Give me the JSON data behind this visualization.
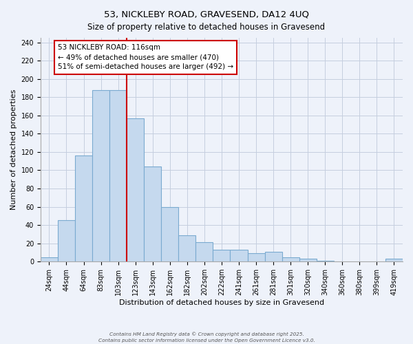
{
  "title": "53, NICKLEBY ROAD, GRAVESEND, DA12 4UQ",
  "subtitle": "Size of property relative to detached houses in Gravesend",
  "xlabel": "Distribution of detached houses by size in Gravesend",
  "ylabel": "Number of detached properties",
  "bar_labels": [
    "24sqm",
    "44sqm",
    "64sqm",
    "83sqm",
    "103sqm",
    "123sqm",
    "143sqm",
    "162sqm",
    "182sqm",
    "202sqm",
    "222sqm",
    "241sqm",
    "261sqm",
    "281sqm",
    "301sqm",
    "320sqm",
    "340sqm",
    "360sqm",
    "380sqm",
    "399sqm",
    "419sqm"
  ],
  "bar_values": [
    5,
    45,
    116,
    188,
    188,
    157,
    104,
    60,
    29,
    21,
    13,
    13,
    9,
    11,
    5,
    3,
    1,
    0,
    0,
    0,
    3
  ],
  "bar_color": "#c5d9ee",
  "bar_edge_color": "#7aaad0",
  "reference_line_color": "#cc0000",
  "annotation_line1": "53 NICKLEBY ROAD: 116sqm",
  "annotation_line2": "← 49% of detached houses are smaller (470)",
  "annotation_line3": "51% of semi-detached houses are larger (492) →",
  "annotation_box_color": "#ffffff",
  "annotation_box_edge": "#cc0000",
  "ylim": [
    0,
    245
  ],
  "yticks": [
    0,
    20,
    40,
    60,
    80,
    100,
    120,
    140,
    160,
    180,
    200,
    220,
    240
  ],
  "footnote1": "Contains HM Land Registry data © Crown copyright and database right 2025.",
  "footnote2": "Contains public sector information licensed under the Open Government Licence v3.0.",
  "bg_color": "#eef2fa",
  "grid_color": "#c5cedf",
  "title_fontsize": 9.5,
  "subtitle_fontsize": 8.5,
  "axis_label_fontsize": 8,
  "tick_fontsize": 7,
  "annotation_fontsize": 7.5
}
